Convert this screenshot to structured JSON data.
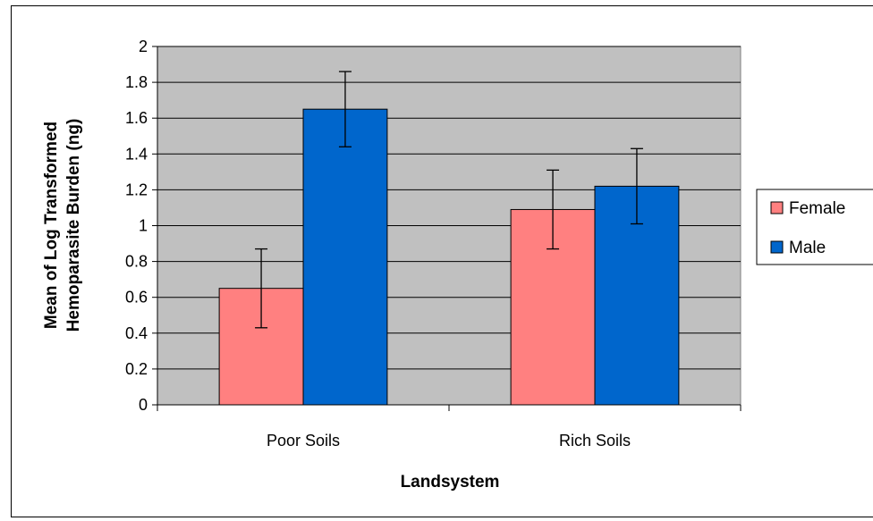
{
  "chart_data": {
    "type": "bar",
    "categories": [
      "Poor Soils",
      "Rich Soils"
    ],
    "series": [
      {
        "name": "Female",
        "color": "#ff8080",
        "values": [
          0.65,
          1.09
        ],
        "error": [
          0.22,
          0.22
        ]
      },
      {
        "name": "Male",
        "color": "#0066cc",
        "values": [
          1.65,
          1.22
        ],
        "error": [
          0.21,
          0.21
        ]
      }
    ],
    "xlabel": "Landsystem",
    "ylabel_lines": [
      "Mean of Log Transformed",
      "Hemoparasite Burden (ng)"
    ],
    "ylim": [
      0,
      2
    ],
    "yticks": [
      "0",
      "0.2",
      "0.4",
      "0.6",
      "0.8",
      "1",
      "1.2",
      "1.4",
      "1.6",
      "1.8",
      "2"
    ],
    "grid": true,
    "plot_background": "#c0c0c0",
    "legend_position": "right"
  }
}
